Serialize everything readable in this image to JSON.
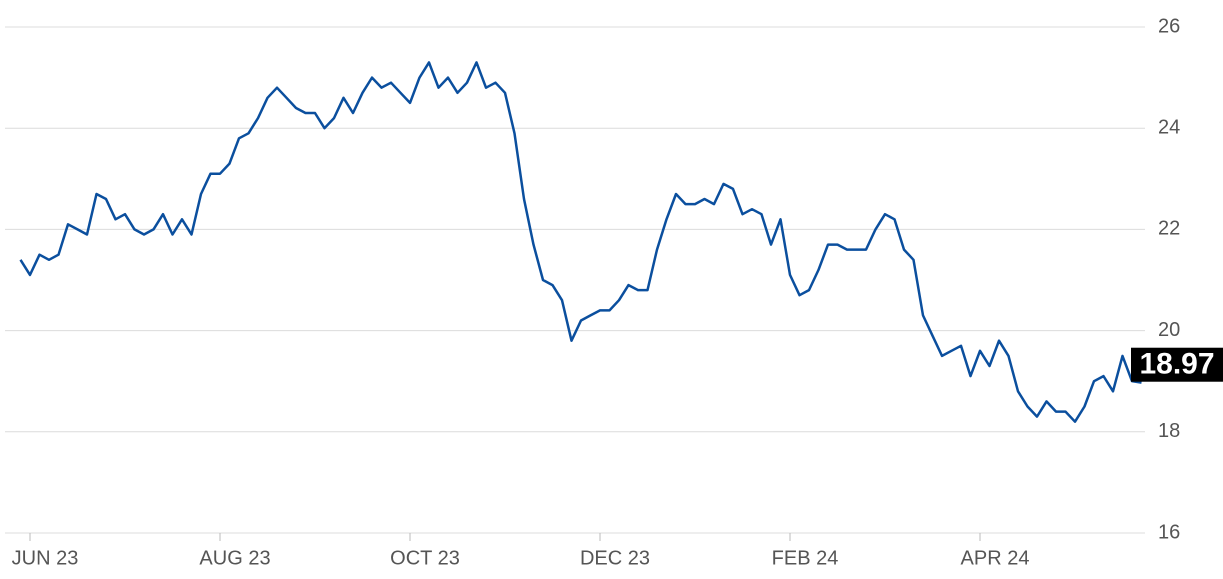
{
  "chart_data": {
    "type": "line",
    "values": [
      21.4,
      21.1,
      21.5,
      21.4,
      21.5,
      22.1,
      22.0,
      21.9,
      22.7,
      22.6,
      22.2,
      22.3,
      22.0,
      21.9,
      22.0,
      22.3,
      21.9,
      22.2,
      21.9,
      22.7,
      23.1,
      23.1,
      23.3,
      23.8,
      23.9,
      24.2,
      24.6,
      24.8,
      24.6,
      24.4,
      24.3,
      24.3,
      24.0,
      24.2,
      24.6,
      24.3,
      24.7,
      25.0,
      24.8,
      24.9,
      24.7,
      24.5,
      25.0,
      25.3,
      24.8,
      25.0,
      24.7,
      24.9,
      25.3,
      24.8,
      24.9,
      24.7,
      23.9,
      22.6,
      21.7,
      21.0,
      20.9,
      20.6,
      19.8,
      20.2,
      20.3,
      20.4,
      20.4,
      20.6,
      20.9,
      20.8,
      20.8,
      21.6,
      22.2,
      22.7,
      22.5,
      22.5,
      22.6,
      22.5,
      22.9,
      22.8,
      22.3,
      22.4,
      22.3,
      21.7,
      22.2,
      21.1,
      20.7,
      20.8,
      21.2,
      21.7,
      21.7,
      21.6,
      21.6,
      21.6,
      22.0,
      22.3,
      22.2,
      21.6,
      21.4,
      20.3,
      19.9,
      19.5,
      19.6,
      19.7,
      19.1,
      19.6,
      19.3,
      19.8,
      19.5,
      18.8,
      18.5,
      18.3,
      18.6,
      18.4,
      18.4,
      18.2,
      18.5,
      19.0,
      19.1,
      18.8,
      19.5,
      19.0,
      18.97
    ],
    "color": "#0b4f9e",
    "xlim": [
      0,
      118
    ],
    "xticks": [
      {
        "value": 1,
        "label": "JUN 23"
      },
      {
        "value": 21,
        "label": "AUG 23"
      },
      {
        "value": 41,
        "label": "OCT 23"
      },
      {
        "value": 61,
        "label": "DEC 23"
      },
      {
        "value": 81,
        "label": "FEB 24"
      },
      {
        "value": 101,
        "label": "APR 24"
      }
    ],
    "ylim": [
      16,
      26
    ],
    "yticks": [
      16,
      18,
      20,
      22,
      24,
      26
    ],
    "grid": true
  }
}
